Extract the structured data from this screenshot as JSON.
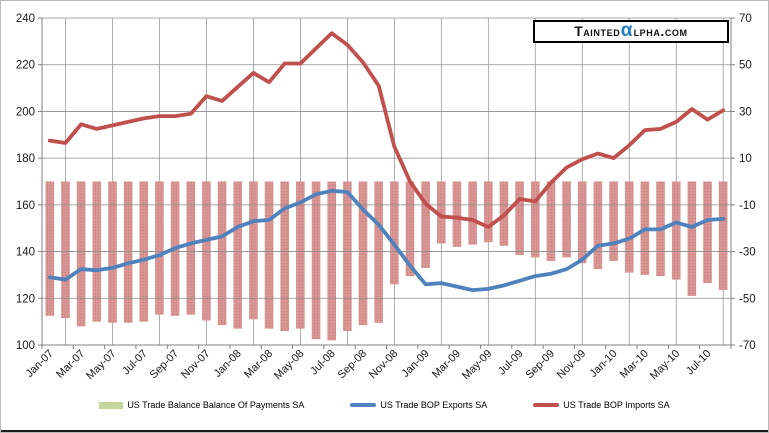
{
  "logo": {
    "prefix": "Tainted",
    "alpha": "α",
    "suffix": "lpha.com",
    "alpha_color": "#1f7ec2"
  },
  "legend": {
    "balance_swatch_color": "#c3d69b",
    "exports_swatch_color": "#4f81bd",
    "imports_swatch_color": "#c0504d"
  },
  "chart_data": {
    "type": "combo-bar-line",
    "title": "",
    "xlabel": "",
    "ylabel_left": "",
    "ylabel_right": "",
    "grid": true,
    "legend_position": "bottom",
    "left_axis": {
      "min": 100,
      "max": 240,
      "step": 20,
      "ticks": [
        240,
        220,
        200,
        180,
        160,
        140,
        120,
        100
      ]
    },
    "right_axis": {
      "min": -70,
      "max": 70,
      "step": 20,
      "ticks": [
        70,
        50,
        30,
        10,
        -10,
        -30,
        -50,
        -70
      ]
    },
    "x_tick_labels": [
      "Jan-07",
      "Mar-07",
      "May-07",
      "Jul-07",
      "Sep-07",
      "Nov-07",
      "Jan-08",
      "Mar-08",
      "May-08",
      "Jul-08",
      "Sep-08",
      "Nov-08",
      "Jan-09",
      "Mar-09",
      "May-09",
      "Jul-09",
      "Sep-09",
      "Nov-09",
      "Jan-10",
      "Mar-10",
      "May-10",
      "Jul-10"
    ],
    "months": [
      "Jan-07",
      "Feb-07",
      "Mar-07",
      "Apr-07",
      "May-07",
      "Jun-07",
      "Jul-07",
      "Aug-07",
      "Sep-07",
      "Oct-07",
      "Nov-07",
      "Dec-07",
      "Jan-08",
      "Feb-08",
      "Mar-08",
      "Apr-08",
      "May-08",
      "Jun-08",
      "Jul-08",
      "Aug-08",
      "Sep-08",
      "Oct-08",
      "Nov-08",
      "Dec-08",
      "Jan-09",
      "Feb-09",
      "Mar-09",
      "Apr-09",
      "May-09",
      "Jun-09",
      "Jul-09",
      "Aug-09",
      "Sep-09",
      "Oct-09",
      "Nov-09",
      "Dec-09",
      "Jan-10",
      "Feb-10",
      "Mar-10",
      "Apr-10",
      "May-10",
      "Jun-10",
      "Jul-10",
      "Aug-10"
    ],
    "series": [
      {
        "name": "US Trade Balance Balance Of Payments SA",
        "type": "bar",
        "axis": "right",
        "color": "#d99694",
        "legend_color": "#c3d69b",
        "values": [
          -57.5,
          -58.5,
          -62,
          -60,
          -60.5,
          -60.5,
          -60,
          -57,
          -57.5,
          -57,
          -59.5,
          -61.5,
          -63,
          -59,
          -63,
          -64,
          -63,
          -67.5,
          -68,
          -64,
          -61.5,
          -60.5,
          -44,
          -40.5,
          -37,
          -26.5,
          -28,
          -27,
          -26,
          -27.5,
          -31.5,
          -32.5,
          -34,
          -32.5,
          -35,
          -37.5,
          -34,
          -39,
          -40,
          -40.5,
          -42,
          -49,
          -43.5,
          -46.5
        ]
      },
      {
        "name": "US Trade BOP Exports SA",
        "type": "line",
        "axis": "left",
        "color": "#4f81bd",
        "values": [
          129,
          128,
          132.5,
          132,
          133,
          135,
          136.5,
          138.5,
          141.5,
          143.5,
          145,
          146.5,
          150.5,
          153,
          153.5,
          158.5,
          161,
          164.5,
          166,
          165.5,
          158,
          151.5,
          143,
          134,
          126,
          126.5,
          125,
          123.5,
          124,
          125.5,
          127.5,
          129.5,
          130.5,
          132.5,
          136.5,
          142.5,
          143.5,
          145.5,
          149.5,
          149.5,
          152.5,
          150.5,
          153.5,
          154
        ]
      },
      {
        "name": "US Trade BOP Imports SA",
        "type": "line",
        "axis": "left",
        "color": "#c0504d",
        "values": [
          187.5,
          186.5,
          194.5,
          192.5,
          194,
          195.5,
          197,
          198,
          198,
          199,
          206.5,
          204.5,
          210.5,
          216.5,
          212.5,
          220.5,
          220.5,
          227,
          233.5,
          228.5,
          221,
          211,
          185,
          170,
          160.5,
          155,
          154.5,
          153.5,
          150.5,
          155.5,
          162.5,
          161.5,
          169.5,
          176,
          179.5,
          182,
          180,
          185.5,
          192,
          192.5,
          195.5,
          201,
          196.5,
          200.5
        ]
      }
    ]
  }
}
